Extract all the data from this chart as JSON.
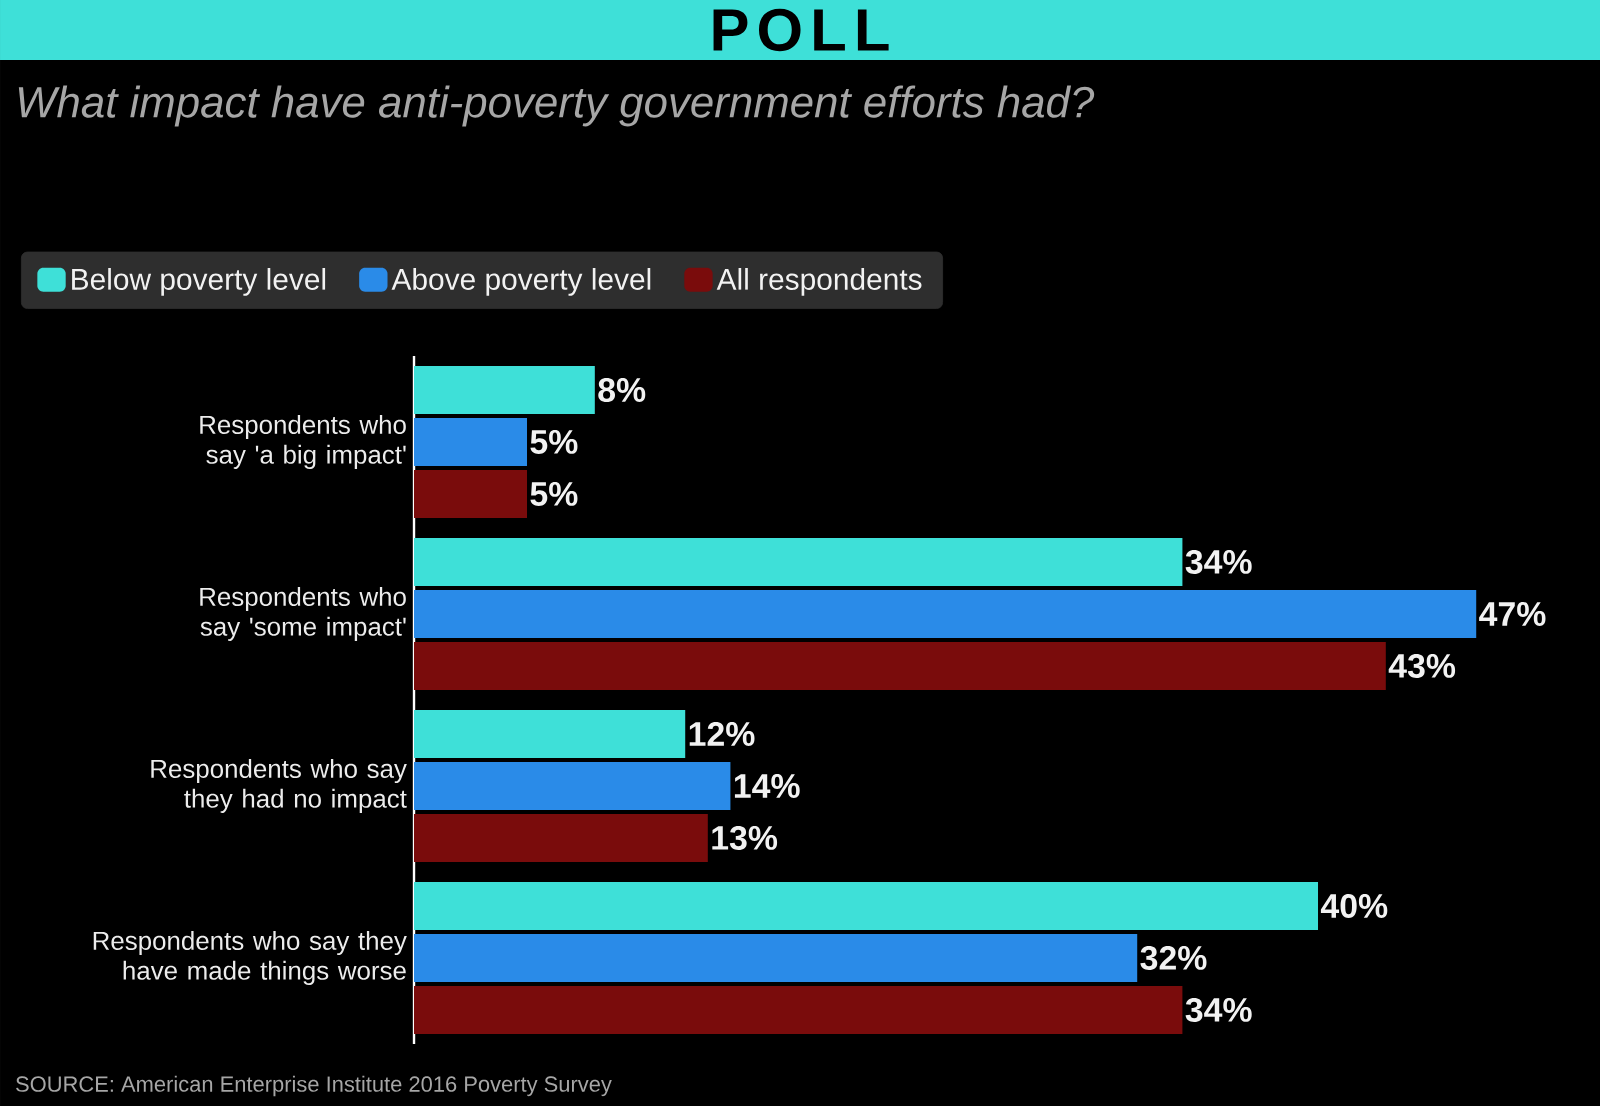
{
  "chart_data": {
    "type": "bar",
    "orientation": "horizontal",
    "title": "POLL",
    "subtitle": "What impact have anti-poverty government efforts had?",
    "categories": [
      "Respondents who say 'a big impact'",
      "Respondents who say 'some impact'",
      "Respondents who say they had no impact",
      "Respondents who say they have made things worse"
    ],
    "series": [
      {
        "name": "Below poverty level",
        "color": "#3ee0d8",
        "values": [
          8,
          34,
          12,
          40
        ],
        "value_labels": [
          "8%",
          "34%",
          "12%",
          "40%"
        ]
      },
      {
        "name": "Above poverty level",
        "color": "#2a8be8",
        "values": [
          5,
          47,
          14,
          32
        ],
        "value_labels": [
          "5%",
          "47%",
          "14%",
          "32%"
        ]
      },
      {
        "name": "All respondents",
        "color": "#7a0c0c",
        "values": [
          5,
          43,
          13,
          34
        ],
        "value_labels": [
          "5%",
          "43%",
          "13%",
          "34%"
        ]
      }
    ],
    "legend": "top",
    "annotations": [
      "SOURCE: American Enterprise Institute 2016 Poverty Survey"
    ]
  }
}
